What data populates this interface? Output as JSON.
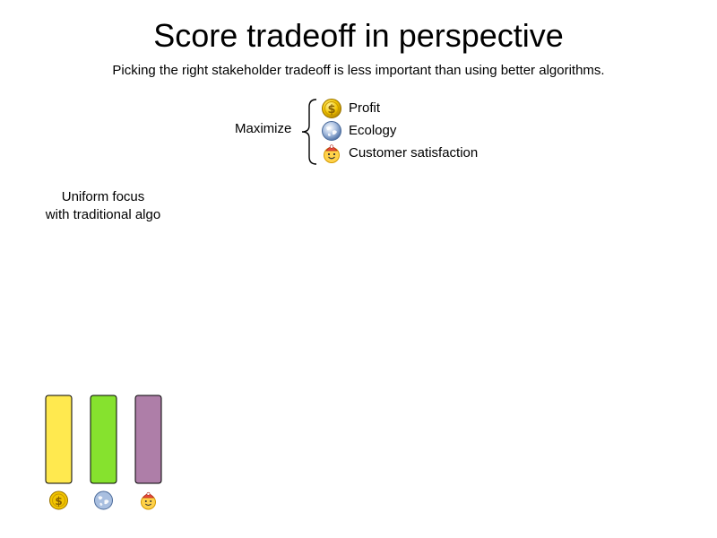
{
  "title": "Score tradeoff in perspective",
  "subtitle": "Picking the right stakeholder tradeoff is less important than using better algorithms.",
  "legend": {
    "maximize_label": "Maximize",
    "items": [
      {
        "label": "Profit",
        "icon": "dollar-coin-icon",
        "color": "#f2c500"
      },
      {
        "label": "Ecology",
        "icon": "globe-icon",
        "color": "#6b8fc4"
      },
      {
        "label": "Customer satisfaction",
        "icon": "smiley-icon",
        "color": "#ffd24a"
      }
    ]
  },
  "chart_data": {
    "type": "bar",
    "title": "Uniform focus\nwith traditional algo",
    "title_lines": [
      "Uniform focus",
      "with traditional algo"
    ],
    "categories": [
      "Profit",
      "Ecology",
      "Customer satisfaction"
    ],
    "values": [
      1,
      1,
      1
    ],
    "colors": [
      "#ffe94f",
      "#86e22e",
      "#ae7ea8"
    ],
    "category_icons": [
      "dollar-coin-icon",
      "globe-icon",
      "smiley-icon"
    ]
  }
}
